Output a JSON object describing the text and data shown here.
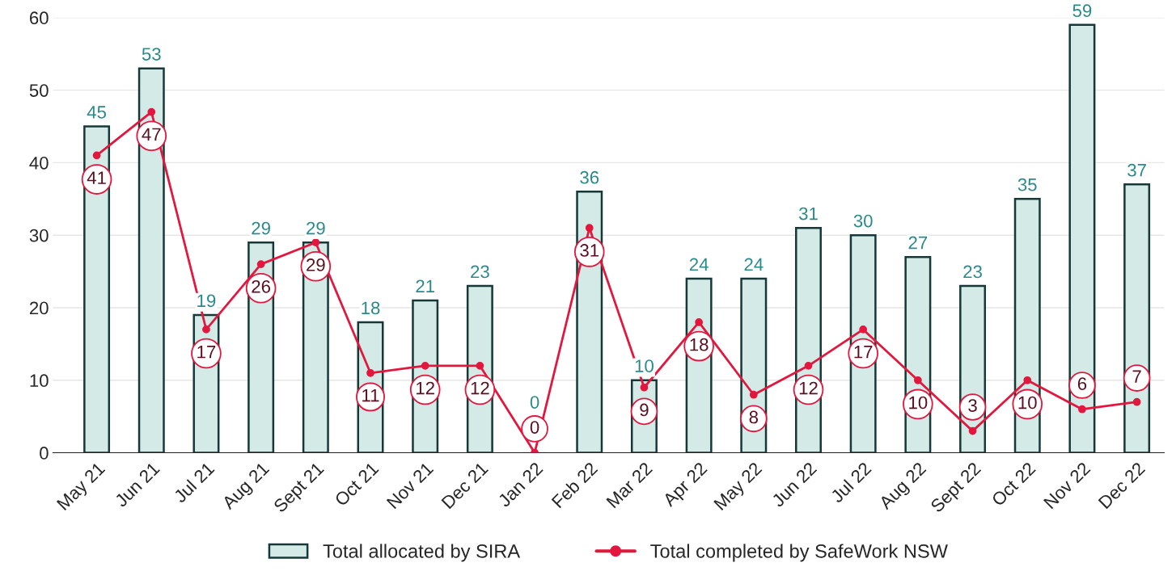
{
  "chart_data": {
    "type": "bar",
    "categories": [
      "May 21",
      "Jun 21",
      "Jul 21",
      "Aug 21",
      "Sept 21",
      "Oct 21",
      "Nov 21",
      "Dec 21",
      "Jan 22",
      "Feb 22",
      "Mar 22",
      "Apr 22",
      "May 22",
      "Jun 22",
      "Jul 22",
      "Aug 22",
      "Sept 22",
      "Oct 22",
      "Nov 22",
      "Dec 22"
    ],
    "series": [
      {
        "name": "Total allocated by SIRA",
        "color": "#d4eae6",
        "values": [
          45,
          53,
          19,
          29,
          29,
          18,
          21,
          23,
          0,
          36,
          10,
          24,
          24,
          31,
          30,
          27,
          23,
          35,
          59,
          37
        ]
      },
      {
        "name": "Total completed by SafeWork NSW",
        "type": "line",
        "color": "#e3173e",
        "values": [
          41,
          47,
          17,
          26,
          29,
          11,
          12,
          12,
          0,
          31,
          9,
          18,
          8,
          12,
          17,
          10,
          3,
          10,
          6,
          7
        ]
      }
    ],
    "ylim": [
      0,
      60
    ],
    "yticks": [
      0,
      10,
      20,
      30,
      40,
      50,
      60
    ],
    "grid": "y",
    "legend": "bottom",
    "marker": "circle",
    "line_style": "solid",
    "data_labels": true
  }
}
